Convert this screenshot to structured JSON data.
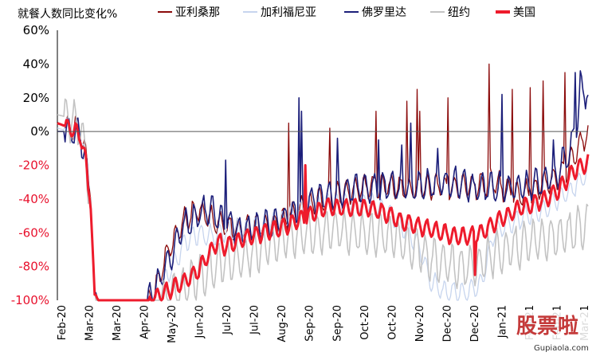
{
  "chart_data": {
    "type": "line",
    "title": "就餐人数同比变化%",
    "ylim": [
      -100,
      60
    ],
    "yticks": [
      "60%",
      "40%",
      "20%",
      "0%",
      "-20%",
      "-40%",
      "-60%",
      "-80%",
      "-100%"
    ],
    "ytick_values": [
      60,
      40,
      20,
      0,
      -20,
      -40,
      -60,
      -80,
      -100
    ],
    "xticks": [
      "Feb-20",
      "Mar-20",
      "Mar-20",
      "Apr-20",
      "May-20",
      "Jun-20",
      "Jul-20",
      "Jul-20",
      "Aug-20",
      "Sep-20",
      "Sep-20",
      "Oct-20",
      "Oct-20",
      "Nov-20",
      "Dec-20",
      "Dec-20",
      "Jan-21",
      "Feb-21",
      "Feb-21",
      "Mar-21"
    ],
    "x_range": [
      0,
      413
    ],
    "legend_position": "top",
    "colors": {
      "positive_axis": "#000000",
      "negative_axis": "#e8112d"
    },
    "series": [
      {
        "name": "亚利桑那",
        "color": "#8b0a0a",
        "width": 1.3,
        "anchors": [
          [
            0,
            5
          ],
          [
            10,
            3
          ],
          [
            18,
            2
          ],
          [
            22,
            -15
          ],
          [
            26,
            -40
          ],
          [
            29,
            -96
          ],
          [
            32,
            -100
          ],
          [
            70,
            -100
          ],
          [
            78,
            -90
          ],
          [
            84,
            -75
          ],
          [
            90,
            -65
          ],
          [
            95,
            -58
          ],
          [
            100,
            -52
          ],
          [
            105,
            -48
          ],
          [
            110,
            -46
          ],
          [
            120,
            -52
          ],
          [
            130,
            -56
          ],
          [
            140,
            -58
          ],
          [
            150,
            -57
          ],
          [
            160,
            -55
          ],
          [
            170,
            -55
          ],
          [
            180,
            -52
          ],
          [
            190,
            -46
          ],
          [
            200,
            -42
          ],
          [
            210,
            -40
          ],
          [
            220,
            -38
          ],
          [
            230,
            -35
          ],
          [
            240,
            -33
          ],
          [
            250,
            -32
          ],
          [
            260,
            -33
          ],
          [
            270,
            -34
          ],
          [
            280,
            -34
          ],
          [
            290,
            -33
          ],
          [
            300,
            -33
          ],
          [
            310,
            -33
          ],
          [
            320,
            -32
          ],
          [
            330,
            -32
          ],
          [
            340,
            -30
          ],
          [
            350,
            -35
          ],
          [
            360,
            -38
          ],
          [
            370,
            -35
          ],
          [
            380,
            -30
          ],
          [
            390,
            -28
          ],
          [
            400,
            -18
          ],
          [
            405,
            -10
          ],
          [
            413,
            0
          ]
        ],
        "amp": 7,
        "period": 7,
        "phase": 0.8,
        "noise": 2,
        "spikes": [
          [
            180,
            5
          ],
          [
            212,
            2
          ],
          [
            248,
            12
          ],
          [
            272,
            18
          ],
          [
            280,
            25
          ],
          [
            282,
            12
          ],
          [
            304,
            20
          ],
          [
            336,
            40
          ],
          [
            354,
            25
          ],
          [
            368,
            26
          ],
          [
            378,
            30
          ],
          [
            395,
            35
          ]
        ]
      },
      {
        "name": "加利福尼亚",
        "color": "#c7d5ee",
        "width": 1.3,
        "anchors": [
          [
            0,
            2
          ],
          [
            10,
            0
          ],
          [
            18,
            -2
          ],
          [
            22,
            -18
          ],
          [
            26,
            -45
          ],
          [
            29,
            -97
          ],
          [
            32,
            -100
          ],
          [
            75,
            -100
          ],
          [
            82,
            -92
          ],
          [
            88,
            -82
          ],
          [
            95,
            -72
          ],
          [
            100,
            -65
          ],
          [
            110,
            -60
          ],
          [
            120,
            -62
          ],
          [
            130,
            -60
          ],
          [
            140,
            -58
          ],
          [
            150,
            -58
          ],
          [
            160,
            -57
          ],
          [
            170,
            -55
          ],
          [
            180,
            -50
          ],
          [
            190,
            -47
          ],
          [
            200,
            -45
          ],
          [
            210,
            -43
          ],
          [
            220,
            -42
          ],
          [
            230,
            -42
          ],
          [
            240,
            -42
          ],
          [
            250,
            -44
          ],
          [
            260,
            -50
          ],
          [
            270,
            -58
          ],
          [
            280,
            -65
          ],
          [
            285,
            -75
          ],
          [
            290,
            -88
          ],
          [
            300,
            -95
          ],
          [
            310,
            -95
          ],
          [
            320,
            -95
          ],
          [
            330,
            -90
          ],
          [
            335,
            -75
          ],
          [
            340,
            -60
          ],
          [
            350,
            -55
          ],
          [
            360,
            -52
          ],
          [
            370,
            -48
          ],
          [
            380,
            -45
          ],
          [
            390,
            -40
          ],
          [
            400,
            -35
          ],
          [
            405,
            -30
          ],
          [
            413,
            -25
          ]
        ],
        "amp": 6,
        "period": 7,
        "phase": 1.5,
        "noise": 1.5,
        "spikes": []
      },
      {
        "name": "佛罗里达",
        "color": "#1c1f7a",
        "width": 1.6,
        "anchors": [
          [
            0,
            0
          ],
          [
            10,
            0
          ],
          [
            18,
            -2
          ],
          [
            22,
            -18
          ],
          [
            26,
            -45
          ],
          [
            29,
            -97
          ],
          [
            32,
            -100
          ],
          [
            70,
            -100
          ],
          [
            75,
            -93
          ],
          [
            80,
            -88
          ],
          [
            85,
            -80
          ],
          [
            90,
            -70
          ],
          [
            95,
            -62
          ],
          [
            100,
            -55
          ],
          [
            108,
            -50
          ],
          [
            115,
            -46
          ],
          [
            122,
            -48
          ],
          [
            130,
            -52
          ],
          [
            140,
            -58
          ],
          [
            150,
            -58
          ],
          [
            160,
            -56
          ],
          [
            170,
            -55
          ],
          [
            180,
            -50
          ],
          [
            190,
            -45
          ],
          [
            200,
            -40
          ],
          [
            210,
            -38
          ],
          [
            220,
            -36
          ],
          [
            230,
            -34
          ],
          [
            240,
            -33
          ],
          [
            250,
            -33
          ],
          [
            260,
            -33
          ],
          [
            270,
            -33
          ],
          [
            280,
            -32
          ],
          [
            290,
            -31
          ],
          [
            300,
            -30
          ],
          [
            310,
            -30
          ],
          [
            320,
            -32
          ],
          [
            330,
            -33
          ],
          [
            340,
            -33
          ],
          [
            350,
            -33
          ],
          [
            360,
            -33
          ],
          [
            370,
            -32
          ],
          [
            380,
            -28
          ],
          [
            390,
            -25
          ],
          [
            395,
            -15
          ],
          [
            400,
            -10
          ],
          [
            405,
            10
          ],
          [
            408,
            26
          ],
          [
            413,
            22
          ]
        ],
        "amp": 8,
        "period": 7,
        "phase": 0.2,
        "noise": 2.5,
        "spikes": [
          [
            131,
            -17
          ],
          [
            188,
            20
          ],
          [
            190,
            12
          ],
          [
            218,
            -4
          ],
          [
            250,
            -5
          ],
          [
            268,
            -8
          ],
          [
            275,
            5
          ],
          [
            296,
            -10
          ],
          [
            324,
            -30
          ],
          [
            346,
            22
          ],
          [
            386,
            -5
          ],
          [
            403,
            35
          ],
          [
            407,
            36
          ]
        ]
      },
      {
        "name": "纽约",
        "color": "#c3c3c3",
        "width": 1.6,
        "anchors": [
          [
            0,
            10
          ],
          [
            10,
            8
          ],
          [
            18,
            3
          ],
          [
            22,
            -15
          ],
          [
            26,
            -42
          ],
          [
            29,
            -97
          ],
          [
            32,
            -100
          ],
          [
            80,
            -100
          ],
          [
            90,
            -97
          ],
          [
            100,
            -92
          ],
          [
            108,
            -88
          ],
          [
            115,
            -83
          ],
          [
            122,
            -80
          ],
          [
            130,
            -78
          ],
          [
            140,
            -76
          ],
          [
            150,
            -72
          ],
          [
            160,
            -68
          ],
          [
            170,
            -65
          ],
          [
            180,
            -62
          ],
          [
            190,
            -60
          ],
          [
            200,
            -60
          ],
          [
            210,
            -58
          ],
          [
            220,
            -58
          ],
          [
            230,
            -60
          ],
          [
            240,
            -60
          ],
          [
            250,
            -62
          ],
          [
            260,
            -62
          ],
          [
            270,
            -65
          ],
          [
            280,
            -68
          ],
          [
            290,
            -75
          ],
          [
            300,
            -78
          ],
          [
            310,
            -80
          ],
          [
            320,
            -80
          ],
          [
            330,
            -78
          ],
          [
            340,
            -72
          ],
          [
            350,
            -70
          ],
          [
            360,
            -68
          ],
          [
            370,
            -66
          ],
          [
            380,
            -64
          ],
          [
            390,
            -62
          ],
          [
            400,
            -60
          ],
          [
            413,
            -55
          ]
        ],
        "amp": 12,
        "period": 7,
        "phase": 2.2,
        "noise": 3,
        "spikes": []
      },
      {
        "name": "美国",
        "color": "#ee1b2c",
        "width": 3,
        "anchors": [
          [
            0,
            5
          ],
          [
            10,
            2
          ],
          [
            18,
            -2
          ],
          [
            22,
            -18
          ],
          [
            26,
            -45
          ],
          [
            29,
            -97
          ],
          [
            32,
            -100
          ],
          [
            70,
            -100
          ],
          [
            80,
            -97
          ],
          [
            90,
            -93
          ],
          [
            100,
            -88
          ],
          [
            110,
            -82
          ],
          [
            120,
            -70
          ],
          [
            125,
            -65
          ],
          [
            130,
            -68
          ],
          [
            140,
            -65
          ],
          [
            150,
            -62
          ],
          [
            160,
            -60
          ],
          [
            170,
            -58
          ],
          [
            180,
            -55
          ],
          [
            190,
            -52
          ],
          [
            200,
            -48
          ],
          [
            210,
            -45
          ],
          [
            220,
            -45
          ],
          [
            230,
            -45
          ],
          [
            240,
            -45
          ],
          [
            250,
            -47
          ],
          [
            260,
            -50
          ],
          [
            270,
            -54
          ],
          [
            280,
            -56
          ],
          [
            290,
            -58
          ],
          [
            300,
            -60
          ],
          [
            310,
            -62
          ],
          [
            320,
            -62
          ],
          [
            330,
            -60
          ],
          [
            340,
            -54
          ],
          [
            350,
            -50
          ],
          [
            360,
            -45
          ],
          [
            370,
            -43
          ],
          [
            380,
            -40
          ],
          [
            390,
            -35
          ],
          [
            400,
            -25
          ],
          [
            405,
            -22
          ],
          [
            413,
            -18
          ]
        ],
        "amp": 5,
        "period": 7,
        "phase": 1.0,
        "noise": 0.8,
        "spikes": [
          [
            193,
            -20
          ],
          [
            325,
            -85
          ]
        ]
      }
    ]
  },
  "watermark": {
    "text": "股票啦",
    "url": "Gupiaola.com"
  }
}
